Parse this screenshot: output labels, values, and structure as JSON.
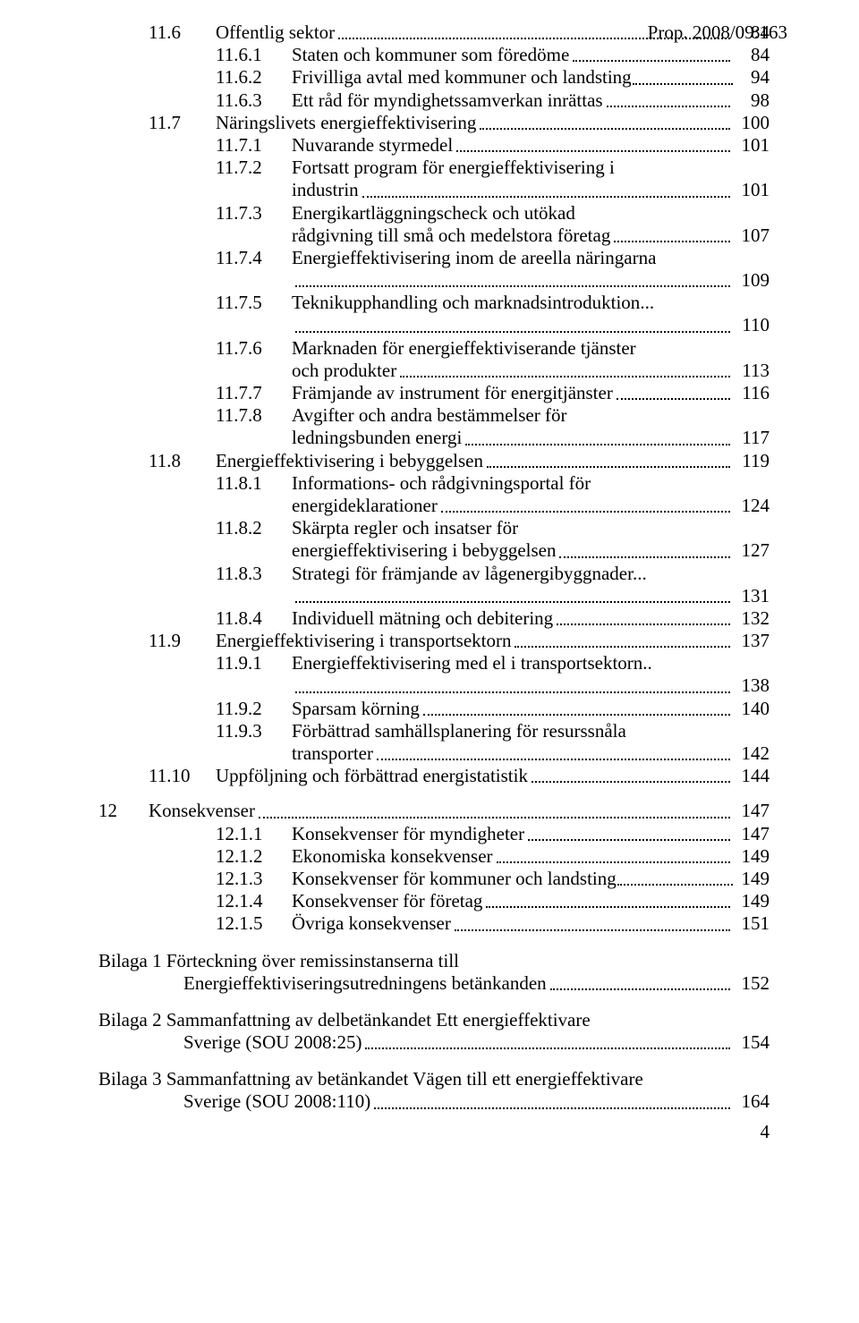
{
  "header": {
    "prop": "Prop. 2008/09:163"
  },
  "toc": [
    {
      "indent": 2,
      "num": "11.6",
      "text": "Offentlig sektor",
      "page": "84"
    },
    {
      "indent": 3,
      "num": "11.6.1",
      "text": "Staten och kommuner som föredöme",
      "page": "84"
    },
    {
      "indent": 3,
      "num": "11.6.2",
      "text": "Frivilliga avtal med kommuner och landsting",
      "page": "94",
      "tight": true
    },
    {
      "indent": 3,
      "num": "11.6.3",
      "text": "Ett råd för myndighetssamverkan inrättas",
      "page": "98"
    },
    {
      "indent": 2,
      "num": "11.7",
      "text": "Näringslivets energieffektivisering",
      "page": "100"
    },
    {
      "indent": 3,
      "num": "11.7.1",
      "text": "Nuvarande styrmedel",
      "page": "101"
    },
    {
      "indent": 3,
      "num": "11.7.2",
      "text": "Fortsatt program för energieffektivisering i",
      "text2": "industrin",
      "page": "101"
    },
    {
      "indent": 3,
      "num": "11.7.3",
      "text": "Energikartläggningscheck och utökad",
      "text2": "rådgivning till små och medelstora företag",
      "page": "107"
    },
    {
      "indent": 3,
      "num": "11.7.4",
      "text": "Energieffektivisering inom de areella näringarna",
      "dotonly": true,
      "page": "109"
    },
    {
      "indent": 3,
      "num": "11.7.5",
      "text": "Teknikupphandling och marknadsintroduktion",
      "traildots": true,
      "dotonly": true,
      "page": "110"
    },
    {
      "indent": 3,
      "num": "11.7.6",
      "text": "Marknaden för energieffektiviserande tjänster",
      "text2": "och produkter",
      "page": "113"
    },
    {
      "indent": 3,
      "num": "11.7.7",
      "text": "Främjande av instrument för energitjänster",
      "page": "116"
    },
    {
      "indent": 3,
      "num": "11.7.8",
      "text": "Avgifter och andra bestämmelser för",
      "text2": "ledningsbunden energi",
      "page": "117"
    },
    {
      "indent": 2,
      "num": "11.8",
      "text": "Energieffektivisering i bebyggelsen",
      "page": "119"
    },
    {
      "indent": 3,
      "num": "11.8.1",
      "text": "Informations- och rådgivningsportal för",
      "text2": "energideklarationer",
      "page": "124"
    },
    {
      "indent": 3,
      "num": "11.8.2",
      "text": "Skärpta regler och insatser för",
      "text2": "energieffektivisering i bebyggelsen",
      "page": "127"
    },
    {
      "indent": 3,
      "num": "11.8.3",
      "text": "Strategi för främjande av lågenergibyggnader",
      "traildots": true,
      "dotonly": true,
      "page": "131"
    },
    {
      "indent": 3,
      "num": "11.8.4",
      "text": "Individuell mätning och debitering",
      "page": "132"
    },
    {
      "indent": 2,
      "num": "11.9",
      "text": "Energieffektivisering i transportsektorn",
      "page": "137"
    },
    {
      "indent": 3,
      "num": "11.9.1",
      "text": "Energieffektivisering med el i transportsektorn",
      "traildots2": true,
      "dotonly": true,
      "page": "138"
    },
    {
      "indent": 3,
      "num": "11.9.2",
      "text": "Sparsam körning",
      "page": "140"
    },
    {
      "indent": 3,
      "num": "11.9.3",
      "text": "Förbättrad samhällsplanering för resurssnåla",
      "text2": "transporter",
      "page": "142"
    },
    {
      "indent": 2,
      "num": "11.10",
      "text": "Uppföljning och förbättrad energistatistik",
      "page": "144"
    },
    {
      "spacer": true
    },
    {
      "indent": 1,
      "num": "12",
      "text": "Konsekvenser",
      "page": "147"
    },
    {
      "indent": 3,
      "num": "12.1.1",
      "text": "Konsekvenser för myndigheter",
      "page": "147"
    },
    {
      "indent": 3,
      "num": "12.1.2",
      "text": "Ekonomiska konsekvenser",
      "page": "149"
    },
    {
      "indent": 3,
      "num": "12.1.3",
      "text": "Konsekvenser för kommuner och landsting",
      "page": "149",
      "tight": true
    },
    {
      "indent": 3,
      "num": "12.1.4",
      "text": "Konsekvenser för företag",
      "page": "149"
    },
    {
      "indent": 3,
      "num": "12.1.5",
      "text": "Övriga konsekvenser",
      "page": "151"
    }
  ],
  "bilagor": [
    {
      "text1": "Bilaga 1 Förteckning över remissinstanserna till",
      "text2": "Energieffektiviseringsutredningens betänkanden",
      "page": "152"
    },
    {
      "text1": "Bilaga 2 Sammanfattning av delbetänkandet Ett energieffektivare",
      "text2": "Sverige (SOU 2008:25)",
      "page": "154"
    },
    {
      "text1": "Bilaga 3 Sammanfattning av betänkandet Vägen till ett energieffektivare",
      "text2": "Sverige (SOU 2008:110)",
      "page": "164"
    }
  ],
  "footer": {
    "page": "4"
  }
}
